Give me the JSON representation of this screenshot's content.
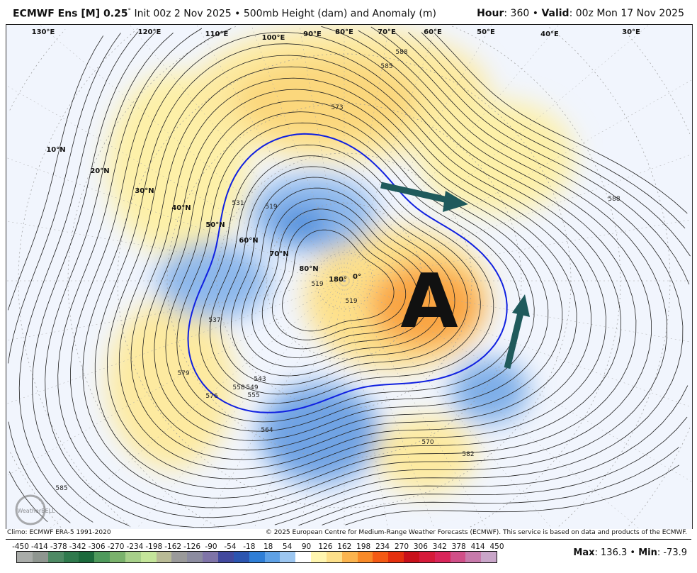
{
  "header": {
    "model": "ECMWF Ens [M] 0.25",
    "degree": "°",
    "init": " Init 00z 2 Nov 2025 • 500mb Height (dam) and Anomaly (m)",
    "hour_label": "Hour",
    "hour": ": 360 • ",
    "valid_label": "Valid",
    "valid": ": 00z Mon 17 Nov 2025"
  },
  "map": {
    "lat_labels": [
      "10°N",
      "20°N",
      "30°N",
      "40°N",
      "50°N",
      "60°N",
      "70°N",
      "80°N"
    ],
    "lon_labels": [
      "130°E",
      "120°E",
      "110°E",
      "100°E",
      "90°E",
      "80°E",
      "70°E",
      "60°E",
      "50°E",
      "40°E",
      "30°E",
      "180°",
      "0°"
    ],
    "contour_labels": [
      "588",
      "585",
      "573",
      "519",
      "537",
      "543",
      "549",
      "555",
      "558",
      "564",
      "570",
      "576",
      "579",
      "582",
      "588",
      "585",
      "519",
      "519",
      "531"
    ],
    "annotation_letter": "A",
    "arrow_color": "#1f5a5c",
    "logo_text": "WeatherBELL"
  },
  "footer": {
    "climo": "Climo: ECMWF ERA-5 1991-2020",
    "copyright": "© 2025 European Centre for Medium-Range Weather Forecasts (ECMWF). This service is based on data and products of the ECMWF."
  },
  "colorbar": {
    "ticks": [
      "-450",
      "-414",
      "-378",
      "-342",
      "-306",
      "-270",
      "-234",
      "-198",
      "-162",
      "-126",
      "-90",
      "-54",
      "-18",
      "18",
      "54",
      "90",
      "126",
      "162",
      "198",
      "234",
      "270",
      "306",
      "342",
      "378",
      "414",
      "450"
    ],
    "colors": [
      "#a9aca9",
      "#8f9690",
      "#4e8a64",
      "#2f7a4d",
      "#1c6a3c",
      "#4f9a5c",
      "#7ab26c",
      "#a7d08a",
      "#c4e59a",
      "#b9bb96",
      "#9a9a9a",
      "#8c8ca0",
      "#7f74a8",
      "#42499e",
      "#2c55b0",
      "#2f7ed6",
      "#5ea1e6",
      "#9cc6f0",
      "#ffffff",
      "#fff6b0",
      "#fde08a",
      "#fbb44e",
      "#f88a28",
      "#f45a14",
      "#e5300e",
      "#c9101a",
      "#d61a3a",
      "#d9255a",
      "#d04f88",
      "#c77aab",
      "#c9a6c9"
    ],
    "max_label": "Max",
    "max": ": 136.3 • ",
    "min_label": "Min",
    "min": ": -73.9"
  }
}
